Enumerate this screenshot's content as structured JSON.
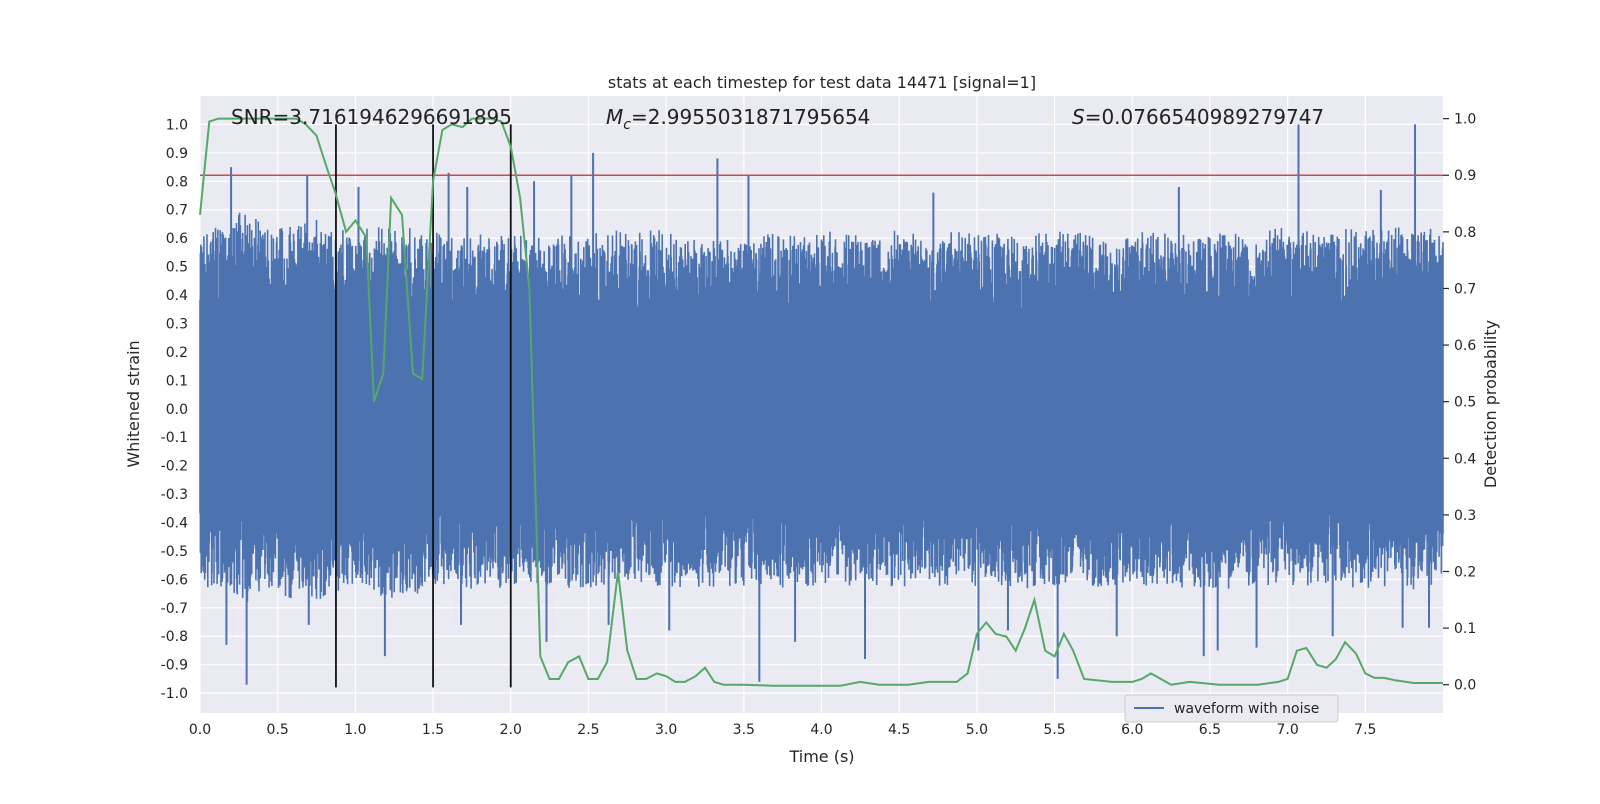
{
  "chart_data": {
    "type": "line",
    "title": "stats at each timestep for test data 14471 [signal=1]",
    "xlabel": "Time (s)",
    "ylabel": "Whitened strain",
    "y2label": "Detection probability",
    "xlim": [
      0.0,
      8.0
    ],
    "ylim": [
      -1.07,
      1.1
    ],
    "y2lim": [
      -0.05,
      1.04
    ],
    "xticks": [
      0.0,
      0.5,
      1.0,
      1.5,
      2.0,
      2.5,
      3.0,
      3.5,
      4.0,
      4.5,
      5.0,
      5.5,
      6.0,
      6.5,
      7.0,
      7.5
    ],
    "xtick_labels": [
      "0.0",
      "0.5",
      "1.0",
      "1.5",
      "2.0",
      "2.5",
      "3.0",
      "3.5",
      "4.0",
      "4.5",
      "5.0",
      "5.5",
      "6.0",
      "6.5",
      "7.0",
      "7.5"
    ],
    "yticks": [
      1.0,
      0.9,
      0.8,
      0.7,
      0.6,
      0.5,
      0.4,
      0.3,
      0.2,
      0.1,
      0.0,
      -0.1,
      -0.2,
      -0.3,
      -0.4,
      -0.5,
      -0.6,
      -0.7,
      -0.8,
      -0.9,
      -1.0
    ],
    "ytick_labels": [
      "1.0",
      "0.9",
      "0.8",
      "0.7",
      "0.6",
      "0.5",
      "0.4",
      "0.3",
      "0.2",
      "0.1",
      "0.0",
      "-0.1",
      "-0.2",
      "-0.3",
      "-0.4",
      "-0.5",
      "-0.6",
      "-0.7",
      "-0.8",
      "-0.9",
      "-1.0"
    ],
    "y2ticks": [
      1.0,
      0.9,
      0.8,
      0.7,
      0.6,
      0.5,
      0.4,
      0.3,
      0.2,
      0.1,
      0.0
    ],
    "y2tick_labels": [
      "1.0",
      "0.9",
      "0.8",
      "0.7",
      "0.6",
      "0.5",
      "0.4",
      "0.3",
      "0.2",
      "0.1",
      "0.0"
    ],
    "grid": true,
    "annotations": {
      "snr": "SNR=3.7161946296691895",
      "mc_symbol": "M",
      "mc_sub": "c",
      "mc_value": "=2.9955031871795654",
      "s_symbol": "S",
      "s_value": "=0.0766540989279747"
    },
    "threshold": {
      "y2": 0.9,
      "color": "#c44e52"
    },
    "vlines": [
      {
        "x": 0.875,
        "y_from": -0.98,
        "y_to": 1.0
      },
      {
        "x": 1.5,
        "y_from": -0.98,
        "y_to": 1.0
      },
      {
        "x": 2.0,
        "y_from": -0.98,
        "y_to": 1.0
      }
    ],
    "colors": {
      "waveform": "#4c72b0",
      "probability": "#55a868",
      "vline": "#111111",
      "background": "#eaeaf2",
      "grid": "#ffffff"
    },
    "waveform": {
      "name": "waveform with noise",
      "sample_step": 0.005,
      "t": [
        0.0,
        0.25,
        0.5,
        0.75,
        1.0,
        1.25,
        1.5,
        1.75,
        2.0,
        2.25,
        2.5,
        2.75,
        3.0,
        3.25,
        3.5,
        3.75,
        4.0,
        4.25,
        4.5,
        4.75,
        5.0,
        5.25,
        5.5,
        5.75,
        6.0,
        6.25,
        6.5,
        6.75,
        7.0,
        7.25,
        7.5,
        7.75,
        8.0
      ],
      "upper": [
        0.56,
        0.62,
        0.58,
        0.6,
        0.56,
        0.58,
        0.57,
        0.56,
        0.55,
        0.55,
        0.56,
        0.57,
        0.56,
        0.55,
        0.55,
        0.55,
        0.56,
        0.56,
        0.56,
        0.56,
        0.55,
        0.55,
        0.56,
        0.55,
        0.56,
        0.56,
        0.55,
        0.56,
        0.57,
        0.56,
        0.57,
        0.58,
        0.56
      ],
      "lower": [
        -0.56,
        -0.62,
        -0.6,
        -0.6,
        -0.57,
        -0.6,
        -0.58,
        -0.57,
        -0.56,
        -0.57,
        -0.57,
        -0.56,
        -0.56,
        -0.56,
        -0.56,
        -0.57,
        -0.56,
        -0.56,
        -0.56,
        -0.56,
        -0.56,
        -0.57,
        -0.56,
        -0.56,
        -0.56,
        -0.56,
        -0.57,
        -0.56,
        -0.56,
        -0.56,
        -0.57,
        -0.57,
        -0.56
      ],
      "peaks": [
        {
          "t": 0.2,
          "v": 0.85
        },
        {
          "t": 0.3,
          "v": -0.97
        },
        {
          "t": 0.17,
          "v": -0.83
        },
        {
          "t": 0.69,
          "v": 0.82
        },
        {
          "t": 0.7,
          "v": -0.76
        },
        {
          "t": 1.02,
          "v": 0.78
        },
        {
          "t": 1.19,
          "v": -0.87
        },
        {
          "t": 1.6,
          "v": 0.83
        },
        {
          "t": 1.68,
          "v": -0.76
        },
        {
          "t": 1.72,
          "v": 0.78
        },
        {
          "t": 2.15,
          "v": 0.8
        },
        {
          "t": 2.23,
          "v": -0.82
        },
        {
          "t": 2.39,
          "v": 0.82
        },
        {
          "t": 2.53,
          "v": 0.9
        },
        {
          "t": 2.63,
          "v": -0.76
        },
        {
          "t": 3.02,
          "v": -0.78
        },
        {
          "t": 3.33,
          "v": 0.88
        },
        {
          "t": 3.53,
          "v": 0.82
        },
        {
          "t": 3.6,
          "v": -0.96
        },
        {
          "t": 3.83,
          "v": -0.82
        },
        {
          "t": 4.28,
          "v": -0.88
        },
        {
          "t": 4.72,
          "v": 0.76
        },
        {
          "t": 5.01,
          "v": -0.85
        },
        {
          "t": 5.2,
          "v": -0.78
        },
        {
          "t": 5.52,
          "v": -0.95
        },
        {
          "t": 5.9,
          "v": -0.8
        },
        {
          "t": 6.3,
          "v": 0.78
        },
        {
          "t": 6.46,
          "v": -0.87
        },
        {
          "t": 6.55,
          "v": -0.85
        },
        {
          "t": 6.8,
          "v": -0.84
        },
        {
          "t": 7.07,
          "v": 1.0
        },
        {
          "t": 7.29,
          "v": -0.8
        },
        {
          "t": 7.6,
          "v": 0.77
        },
        {
          "t": 7.82,
          "v": 1.0
        },
        {
          "t": 7.74,
          "v": -0.77
        },
        {
          "t": 7.91,
          "v": -0.77
        }
      ]
    },
    "probability": {
      "name": "Detection probability",
      "x": [
        0.0,
        0.06,
        0.12,
        0.2,
        0.35,
        0.5,
        0.62,
        0.68,
        0.75,
        0.82,
        0.87,
        0.94,
        1.0,
        1.07,
        1.12,
        1.18,
        1.23,
        1.3,
        1.37,
        1.43,
        1.5,
        1.56,
        1.62,
        1.69,
        1.75,
        1.81,
        1.87,
        1.94,
        2.0,
        2.06,
        2.12,
        2.19,
        2.25,
        2.31,
        2.37,
        2.44,
        2.5,
        2.56,
        2.62,
        2.69,
        2.75,
        2.81,
        2.87,
        2.94,
        3.0,
        3.06,
        3.12,
        3.19,
        3.25,
        3.31,
        3.37,
        3.5,
        3.69,
        4.0,
        4.12,
        4.25,
        4.37,
        4.56,
        4.69,
        4.87,
        4.94,
        5.0,
        5.06,
        5.12,
        5.19,
        5.25,
        5.31,
        5.37,
        5.44,
        5.5,
        5.56,
        5.62,
        5.69,
        5.87,
        6.0,
        6.06,
        6.12,
        6.25,
        6.37,
        6.56,
        6.81,
        6.94,
        7.0,
        7.06,
        7.12,
        7.19,
        7.25,
        7.31,
        7.37,
        7.44,
        7.5,
        7.56,
        7.62,
        7.69,
        7.81,
        8.0
      ],
      "y": [
        0.83,
        0.995,
        1.0,
        1.0,
        1.0,
        1.0,
        1.0,
        0.99,
        0.97,
        0.91,
        0.87,
        0.8,
        0.82,
        0.79,
        0.5,
        0.55,
        0.86,
        0.83,
        0.55,
        0.54,
        0.89,
        0.98,
        0.99,
        0.985,
        1.0,
        1.0,
        1.0,
        0.995,
        0.95,
        0.86,
        0.7,
        0.05,
        0.01,
        0.01,
        0.04,
        0.05,
        0.01,
        0.01,
        0.04,
        0.2,
        0.06,
        0.01,
        0.01,
        0.02,
        0.015,
        0.005,
        0.005,
        0.015,
        0.03,
        0.005,
        0.0,
        0.0,
        -0.002,
        -0.002,
        -0.002,
        0.005,
        0.0,
        0.0,
        0.005,
        0.005,
        0.02,
        0.09,
        0.11,
        0.09,
        0.085,
        0.06,
        0.1,
        0.15,
        0.06,
        0.05,
        0.09,
        0.06,
        0.01,
        0.005,
        0.005,
        0.01,
        0.02,
        0.0,
        0.005,
        0.0,
        0.0,
        0.005,
        0.01,
        0.06,
        0.065,
        0.035,
        0.03,
        0.045,
        0.075,
        0.055,
        0.02,
        0.012,
        0.012,
        0.008,
        0.003,
        0.003
      ]
    },
    "legend": {
      "label": "waveform with noise",
      "placement": "lower-right"
    }
  }
}
